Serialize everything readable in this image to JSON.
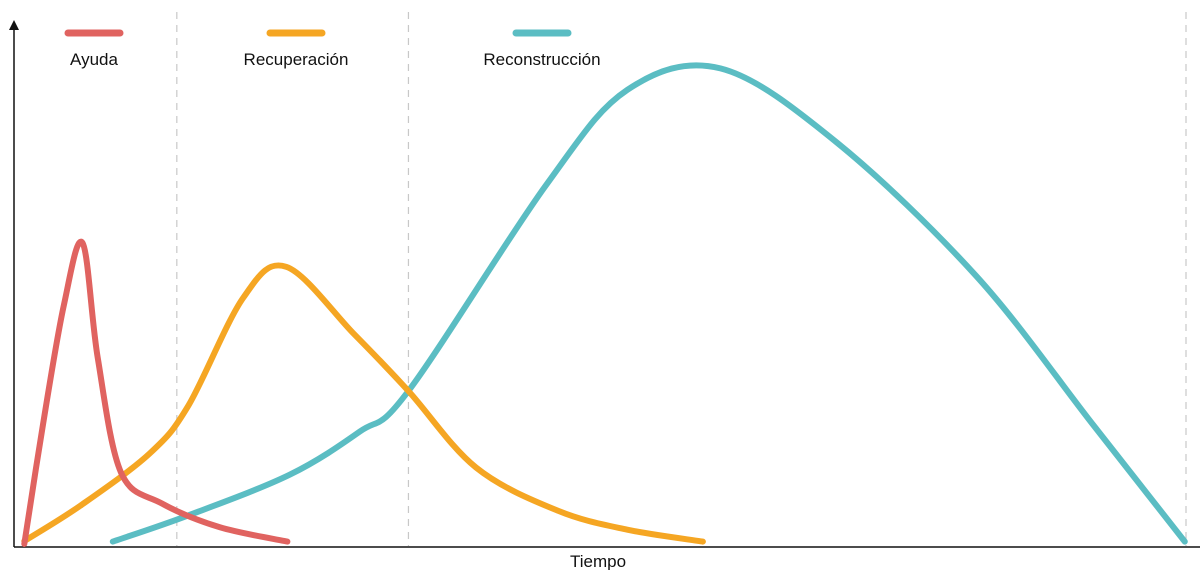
{
  "chart_data": {
    "type": "line",
    "title": "",
    "xlabel": "Tiempo",
    "ylabel": "",
    "xlim": [
      0,
      100
    ],
    "ylim": [
      0,
      100
    ],
    "grid": false,
    "phase_dividers_x": [
      13.3,
      33.2,
      100
    ],
    "legend": "top",
    "series": [
      {
        "name": "Ayuda",
        "color": "#e06360",
        "points": [
          [
            0.2,
            0
          ],
          [
            1.8,
            25
          ],
          [
            3.6,
            50
          ],
          [
            5.2,
            63
          ],
          [
            6.5,
            39
          ],
          [
            8.5,
            15
          ],
          [
            12,
            8.5
          ],
          [
            17,
            3.5
          ],
          [
            22.8,
            0.5
          ]
        ]
      },
      {
        "name": "Recuperación",
        "color": "#f5a623",
        "points": [
          [
            0.2,
            0.6
          ],
          [
            5,
            8
          ],
          [
            11,
            19
          ],
          [
            14.3,
            29
          ],
          [
            19,
            51.5
          ],
          [
            22.7,
            58
          ],
          [
            28.5,
            44
          ],
          [
            33.2,
            32
          ],
          [
            39,
            16
          ],
          [
            46,
            7
          ],
          [
            52,
            3
          ],
          [
            58.5,
            0.5
          ]
        ]
      },
      {
        "name": "Reconstrucción",
        "color": "#5bbdc3",
        "points": [
          [
            7.8,
            0.5
          ],
          [
            14.3,
            6
          ],
          [
            23,
            14.5
          ],
          [
            29,
            23.5
          ],
          [
            33.2,
            32
          ],
          [
            45,
            75
          ],
          [
            52,
            95
          ],
          [
            60,
            99.5
          ],
          [
            70,
            84
          ],
          [
            82,
            56
          ],
          [
            92,
            25
          ],
          [
            99.9,
            0.5
          ]
        ]
      }
    ]
  }
}
